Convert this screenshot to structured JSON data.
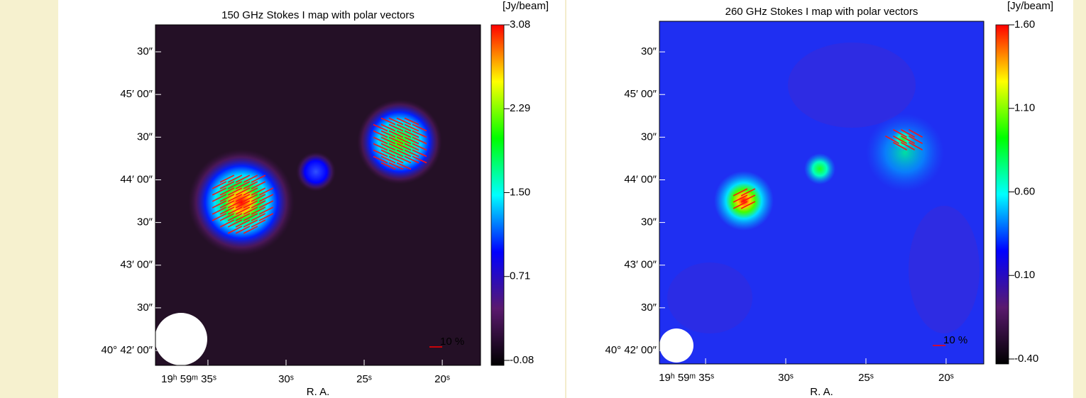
{
  "chart_data": [
    {
      "type": "image",
      "title": "150 GHz Stokes I map with polar vectors",
      "xlabel": "R. A.",
      "colorbar_label": "[Jy/beam]",
      "annotation": "10 %",
      "xlim": [
        38.36,
        17.55
      ],
      "xticks": [
        {
          "value": 35,
          "label": "19ʰ 59ᵐ 35ˢ"
        },
        {
          "value": 30,
          "label": "30ˢ"
        },
        {
          "value": 25,
          "label": "25ˢ"
        },
        {
          "value": 20,
          "label": "20ˢ"
        }
      ],
      "ylim": [
        40.6971,
        40.7636
      ],
      "yticks": [
        {
          "value": 40.7,
          "label": "40° 42′ 00″"
        },
        {
          "value": 40.708333,
          "label": "30″"
        },
        {
          "value": 40.716667,
          "label": "43′ 00″"
        },
        {
          "value": 40.725,
          "label": "30″"
        },
        {
          "value": 40.733333,
          "label": "44′ 00″"
        },
        {
          "value": 40.741667,
          "label": "30″"
        },
        {
          "value": 40.75,
          "label": "45′ 00″"
        },
        {
          "value": 40.758333,
          "label": "30″"
        }
      ],
      "clim": [
        -0.08,
        3.08
      ],
      "cticks": [
        3.08,
        2.29,
        {
          "value": 1.5,
          "label": "1.50"
        },
        0.71,
        -0.08
      ],
      "colormap": [
        "#000000",
        "#5a1a6e",
        "#0000ff",
        "#00ffff",
        "#00ff00",
        "#ffff00",
        "#ff0000"
      ]
    },
    {
      "type": "image",
      "title": "260 GHz Stokes I map with polar vectors",
      "xlabel": "R. A.",
      "colorbar_label": "[Jy/beam]",
      "annotation": "10 %",
      "xlim": [
        37.88,
        17.65
      ],
      "xticks": [
        {
          "value": 35,
          "label": "19ʰ 59ᵐ 35ˢ"
        },
        {
          "value": 30,
          "label": "30ˢ"
        },
        {
          "value": 25,
          "label": "25ˢ"
        },
        {
          "value": 20,
          "label": "20ˢ"
        }
      ],
      "ylim": [
        40.69736,
        40.76431
      ],
      "yticks": [
        {
          "value": 40.7,
          "label": "40° 42′ 00″"
        },
        {
          "value": 40.708333,
          "label": "30″"
        },
        {
          "value": 40.716667,
          "label": "43′ 00″"
        },
        {
          "value": 40.725,
          "label": "30″"
        },
        {
          "value": 40.733333,
          "label": "44′ 00″"
        },
        {
          "value": 40.741667,
          "label": "30″"
        },
        {
          "value": 40.75,
          "label": "45′ 00″"
        },
        {
          "value": 40.758333,
          "label": "30″"
        }
      ],
      "clim": [
        -0.4,
        1.6
      ],
      "cticks": [
        {
          "value": 1.6,
          "label": "1.60"
        },
        {
          "value": 1.1,
          "label": "1.10"
        },
        {
          "value": 0.6,
          "label": "0.60"
        },
        {
          "value": 0.1,
          "label": "0.10"
        },
        {
          "value": -0.4,
          "label": "-0.40"
        }
      ],
      "colormap": [
        "#000000",
        "#5a1a6e",
        "#0000ff",
        "#00ffff",
        "#00ff00",
        "#ffff00",
        "#ff0000"
      ]
    }
  ]
}
